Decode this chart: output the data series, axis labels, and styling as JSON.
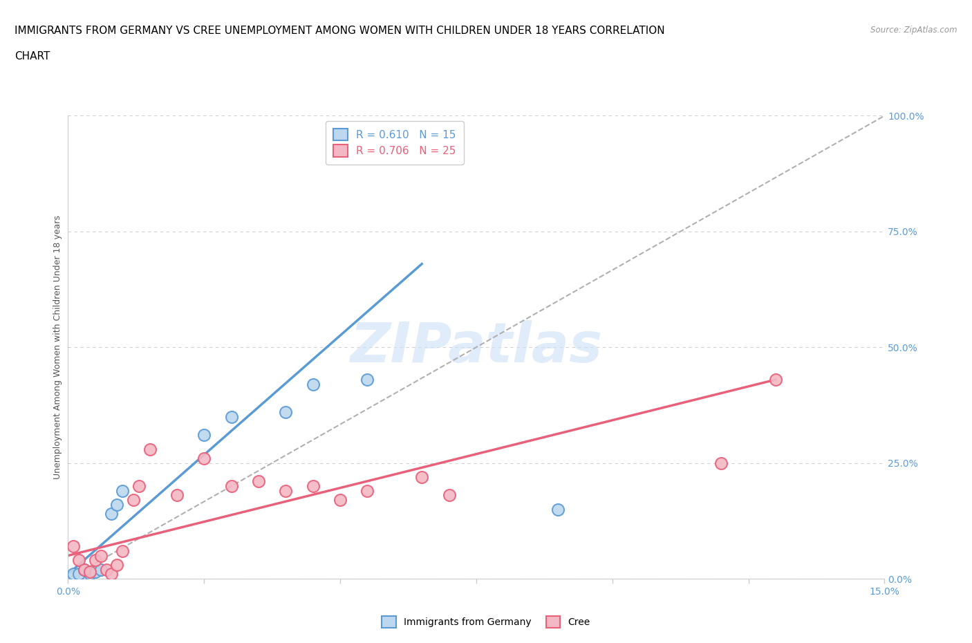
{
  "title_line1": "IMMIGRANTS FROM GERMANY VS CREE UNEMPLOYMENT AMONG WOMEN WITH CHILDREN UNDER 18 YEARS CORRELATION",
  "title_line2": "CHART",
  "source": "Source: ZipAtlas.com",
  "ylabel": "Unemployment Among Women with Children Under 18 years",
  "xlim": [
    0.0,
    0.15
  ],
  "ylim": [
    0.0,
    1.0
  ],
  "x_ticks": [
    0.0,
    0.025,
    0.05,
    0.075,
    0.1,
    0.125,
    0.15
  ],
  "y_ticks_right": [
    0.0,
    0.25,
    0.5,
    0.75,
    1.0
  ],
  "y_tick_labels_right": [
    "0.0%",
    "25.0%",
    "50.0%",
    "75.0%",
    "100.0%"
  ],
  "blue_scatter_x": [
    0.001,
    0.002,
    0.003,
    0.004,
    0.005,
    0.006,
    0.008,
    0.009,
    0.01,
    0.025,
    0.03,
    0.04,
    0.045,
    0.055,
    0.09
  ],
  "blue_scatter_y": [
    0.01,
    0.01,
    0.02,
    0.01,
    0.015,
    0.02,
    0.14,
    0.16,
    0.19,
    0.31,
    0.35,
    0.36,
    0.42,
    0.43,
    0.15
  ],
  "pink_scatter_x": [
    0.001,
    0.002,
    0.003,
    0.004,
    0.005,
    0.006,
    0.007,
    0.008,
    0.009,
    0.01,
    0.012,
    0.013,
    0.015,
    0.02,
    0.025,
    0.03,
    0.035,
    0.04,
    0.045,
    0.05,
    0.055,
    0.065,
    0.07,
    0.12,
    0.13
  ],
  "pink_scatter_y": [
    0.07,
    0.04,
    0.02,
    0.015,
    0.04,
    0.05,
    0.02,
    0.01,
    0.03,
    0.06,
    0.17,
    0.2,
    0.28,
    0.18,
    0.26,
    0.2,
    0.21,
    0.19,
    0.2,
    0.17,
    0.19,
    0.22,
    0.18,
    0.25,
    0.43
  ],
  "blue_line_x": [
    0.0,
    0.065
  ],
  "blue_line_y": [
    0.01,
    0.68
  ],
  "pink_line_x": [
    0.0,
    0.13
  ],
  "pink_line_y": [
    0.05,
    0.43
  ],
  "ref_line_x": [
    0.0,
    0.15
  ],
  "ref_line_y": [
    0.0,
    1.0
  ],
  "blue_color": "#5b9bd5",
  "blue_fill": "#bdd7ee",
  "pink_color": "#e8607a",
  "pink_fill": "#f4b8c4",
  "ref_line_color": "#b0b0b0",
  "grid_color": "#d0d0d0",
  "R_blue": 0.61,
  "N_blue": 15,
  "R_pink": 0.706,
  "N_pink": 25,
  "watermark": "ZIPatlas",
  "title_fontsize": 11,
  "axis_label_fontsize": 9,
  "tick_fontsize": 10,
  "legend_fontsize": 11
}
